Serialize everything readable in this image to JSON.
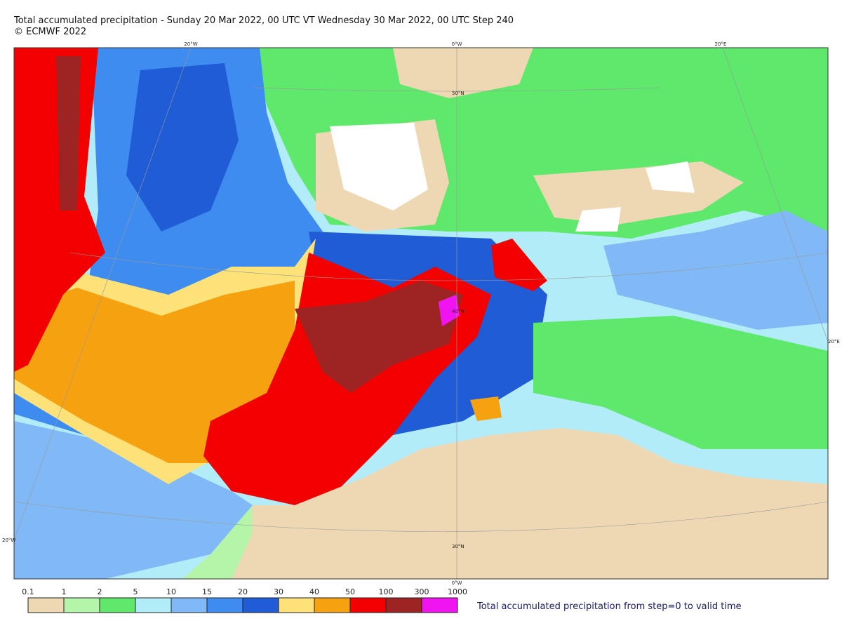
{
  "header": {
    "title": "Total accumulated precipitation - Sunday 20 Mar 2022, 00 UTC VT Wednesday 30 Mar 2022, 00 UTC Step 240",
    "copyright": "© ECMWF 2022"
  },
  "map": {
    "graticule_labels": [
      "20°W",
      "0°W",
      "20°E",
      "50°N",
      "40°N",
      "30°N",
      "20°E",
      "20°W",
      "0°W"
    ]
  },
  "legend": {
    "labels": [
      "0.1",
      "1",
      "2",
      "5",
      "10",
      "15",
      "20",
      "30",
      "40",
      "50",
      "100",
      "300",
      "1000"
    ],
    "colors": [
      "#eed8b4",
      "#b4f5aa",
      "#5ee86c",
      "#b2ecf8",
      "#80b9f5",
      "#3f8cf0",
      "#1f5cd6",
      "#fde27a",
      "#f6a10f",
      "#f30000",
      "#9e2424",
      "#f015f0"
    ],
    "caption": "Total accumulated precipitation from step=0 to valid time"
  }
}
